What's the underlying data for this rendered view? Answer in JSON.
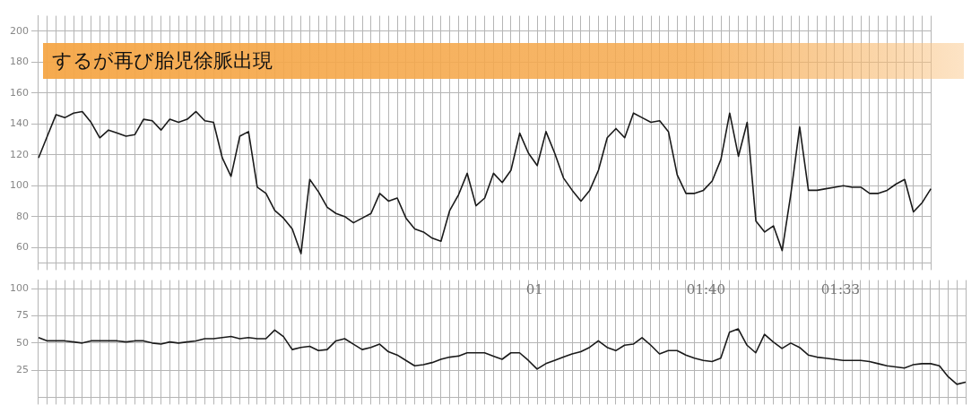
{
  "chart_data": [
    {
      "type": "line",
      "title": "するが再び胎児徐脈出現",
      "categories": [
        null,
        null,
        null,
        null,
        null,
        null,
        null,
        null,
        null,
        null,
        null,
        null,
        null,
        null,
        null,
        null,
        null,
        null,
        null,
        null,
        null,
        null,
        null,
        null,
        null,
        null,
        null,
        null,
        null,
        null,
        null,
        null,
        null,
        null,
        null,
        null,
        null,
        null,
        null,
        null,
        null,
        null,
        null,
        null,
        null,
        null,
        null,
        null,
        null,
        null,
        null,
        null,
        null,
        null,
        null,
        null,
        null,
        null,
        null,
        null,
        null,
        null,
        null,
        null,
        null,
        null,
        null,
        null,
        null,
        null,
        null,
        null,
        null,
        null,
        null,
        null,
        null,
        null,
        null,
        null,
        null,
        null,
        null,
        null,
        null,
        null,
        null,
        null,
        null,
        null,
        null,
        null,
        null,
        null,
        null,
        null,
        null,
        null,
        null,
        null,
        null,
        null,
        null
      ],
      "series": [
        {
          "color": "#1a1a1a",
          "values": [
            118,
            132,
            146,
            144,
            147,
            148,
            141,
            131,
            136,
            134,
            132,
            133,
            143,
            142,
            136,
            143,
            141,
            143,
            148,
            142,
            141,
            118,
            106,
            132,
            135,
            99,
            95,
            84,
            79,
            72,
            56,
            104,
            96,
            86,
            82,
            80,
            76,
            79,
            82,
            95,
            90,
            92,
            79,
            72,
            70,
            66,
            64,
            84,
            94,
            108,
            87,
            92,
            108,
            102,
            110,
            134,
            121,
            113,
            135,
            121,
            105,
            97,
            90,
            97,
            110,
            131,
            137,
            131,
            147,
            144,
            141,
            142,
            135,
            107,
            95,
            95,
            97,
            103,
            117,
            147,
            119,
            141,
            77,
            70,
            74,
            58,
            95,
            138,
            97,
            97,
            98,
            99,
            100,
            99,
            99,
            95,
            95,
            97,
            101,
            104,
            83,
            89,
            98
          ]
        }
      ],
      "ylim": [
        50,
        210
      ],
      "yticks": [
        60,
        80,
        100,
        120,
        140,
        160,
        180,
        200
      ],
      "grid": true,
      "legend": false
    },
    {
      "type": "line",
      "categories": [
        null,
        null,
        null,
        null,
        null,
        null,
        null,
        null,
        null,
        null,
        null,
        null,
        null,
        null,
        null,
        null,
        null,
        null,
        null,
        null,
        null,
        null,
        null,
        null,
        null,
        null,
        null,
        null,
        null,
        null,
        null,
        null,
        null,
        null,
        null,
        null,
        null,
        null,
        null,
        null,
        null,
        null,
        null,
        null,
        null,
        null,
        null,
        null,
        null,
        null,
        null,
        null,
        null,
        null,
        null,
        null,
        null,
        null,
        null,
        null,
        null,
        null,
        null,
        null,
        null,
        null,
        null,
        null,
        null,
        null,
        null,
        null,
        null,
        null,
        null,
        null,
        null,
        null,
        null,
        null,
        null,
        null,
        null,
        null,
        null,
        null,
        null,
        null,
        null,
        null,
        null,
        null,
        null,
        null,
        null,
        null,
        null,
        null,
        null,
        null,
        null,
        null,
        null,
        null,
        null,
        null,
        null
      ],
      "series": [
        {
          "color": "#1a1a1a",
          "values": [
            55,
            52,
            52,
            52,
            51,
            50,
            52,
            52,
            52,
            52,
            51,
            52,
            52,
            50,
            49,
            51,
            50,
            51,
            52,
            54,
            54,
            55,
            56,
            54,
            55,
            54,
            54,
            62,
            56,
            44,
            46,
            47,
            43,
            44,
            52,
            54,
            49,
            44,
            46,
            49,
            42,
            39,
            34,
            29,
            30,
            32,
            35,
            37,
            38,
            41,
            41,
            41,
            38,
            35,
            41,
            41,
            34,
            26,
            31,
            34,
            37,
            40,
            42,
            46,
            52,
            46,
            43,
            48,
            49,
            55,
            48,
            40,
            43,
            43,
            39,
            36,
            34,
            33,
            36,
            60,
            63,
            48,
            41,
            58,
            51,
            45,
            50,
            46,
            39,
            37,
            36,
            35,
            34,
            34,
            34,
            33,
            31,
            29,
            28,
            27,
            30,
            31,
            31,
            29,
            19,
            12,
            14
          ]
        }
      ],
      "ylim": [
        0,
        108
      ],
      "yticks": [
        25,
        50,
        75,
        100
      ],
      "grid": true,
      "legend": false,
      "annotations": [
        "01",
        "01:40",
        "01:33"
      ]
    }
  ]
}
